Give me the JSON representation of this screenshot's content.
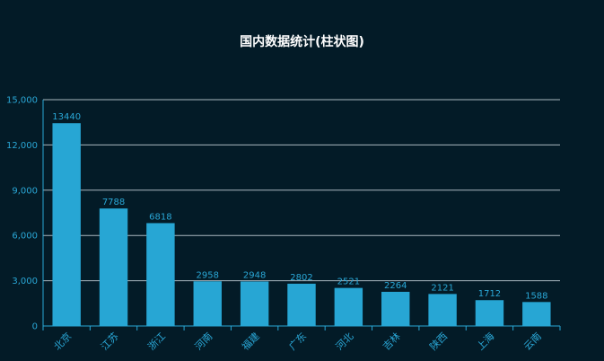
{
  "chart_data": {
    "type": "bar",
    "title": "国内数据统计(柱状图)",
    "categories": [
      "北京",
      "江苏",
      "浙江",
      "河南",
      "福建",
      "广东",
      "河北",
      "吉林",
      "陕西",
      "上海",
      "云南"
    ],
    "values": [
      13440,
      7788,
      6818,
      2958,
      2948,
      2802,
      2521,
      2264,
      2121,
      1712,
      1588
    ],
    "ylim": [
      0,
      15000
    ],
    "yticks": [
      "0",
      "3,000",
      "6,000",
      "9,000",
      "12,000",
      "15,000"
    ],
    "xlabel": "",
    "ylabel": "",
    "grid": true,
    "colors": {
      "bar": "#27a6d4",
      "grid": "#c7d4da",
      "axis": "#2aa7d6",
      "text": "#2aa7d6",
      "title": "#ffffff",
      "background": "#031b27"
    }
  }
}
